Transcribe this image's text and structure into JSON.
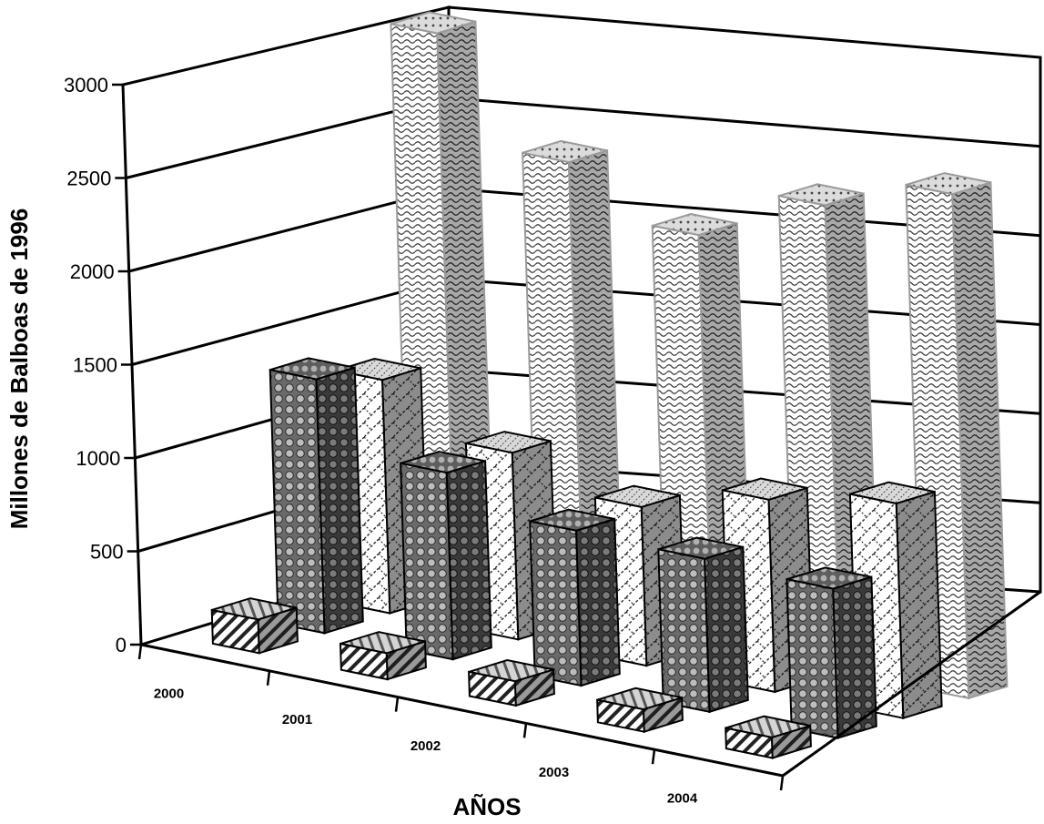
{
  "chart_data": {
    "type": "bar",
    "title": "",
    "xlabel": "AÑOS",
    "ylabel": "Millones de Balboas de 1996",
    "ylim": [
      0,
      3000
    ],
    "yticks": [
      "0",
      "500",
      "1000",
      "1500",
      "2000",
      "2500",
      "3000"
    ],
    "categories": [
      "2000",
      "2001",
      "2002",
      "2003",
      "2004"
    ],
    "series": [
      {
        "values": [
          180,
          140,
          130,
          120,
          110
        ]
      },
      {
        "values": [
          1360,
          1000,
          830,
          820,
          800
        ]
      },
      {
        "values": [
          1250,
          1000,
          850,
          1030,
          1150
        ]
      },
      {
        "values": [
          3000,
          2450,
          2200,
          2500,
          2700
        ]
      }
    ],
    "grid": true,
    "legend": "none",
    "view": "3d"
  },
  "colors": {
    "background": "#ffffff",
    "axes": "#000000",
    "bar_outline": "#000000",
    "back_series_outline": "#9a9a9a"
  }
}
